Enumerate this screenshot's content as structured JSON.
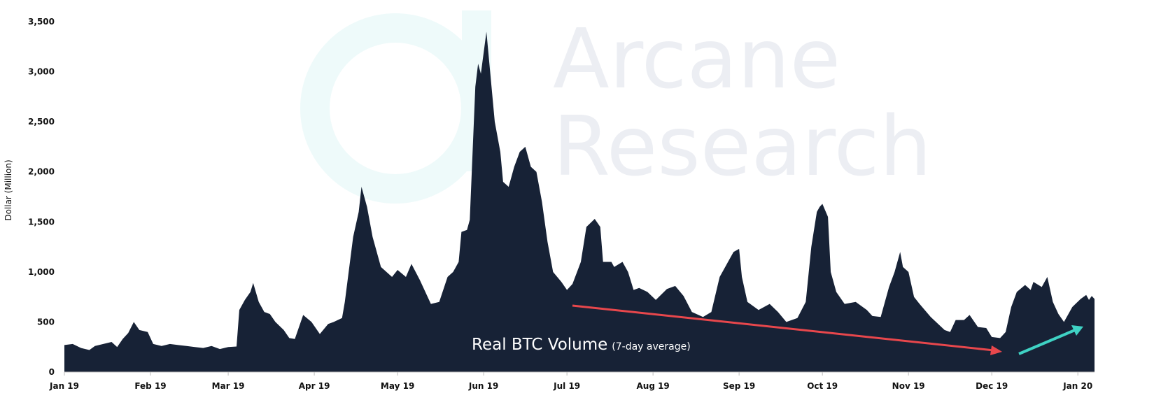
{
  "chart_data": {
    "type": "area",
    "ylabel": "Dollar (Million)",
    "annotation": "Real BTC Volume",
    "annotation_note": "(7-day average)",
    "watermark": [
      "Arcane",
      "Research"
    ],
    "x": [
      0,
      3,
      6,
      9,
      11,
      14,
      17,
      19,
      21,
      23,
      25,
      27,
      30,
      32,
      35,
      38,
      41,
      44,
      47,
      50,
      53,
      56,
      59,
      62,
      63,
      65,
      67,
      68,
      70,
      72,
      74,
      76,
      79,
      81,
      83,
      86,
      89,
      92,
      95,
      97,
      100,
      101,
      104,
      106,
      107,
      109,
      111,
      114,
      118,
      120,
      123,
      125,
      128,
      132,
      135,
      138,
      140,
      142,
      143,
      145,
      146,
      148,
      149,
      150,
      152,
      155,
      157,
      158,
      160,
      162,
      164,
      166,
      168,
      170,
      172,
      174,
      176,
      179,
      181,
      183,
      186,
      188,
      191,
      193,
      194,
      197,
      198,
      201,
      203,
      205,
      207,
      210,
      213,
      217,
      220,
      223,
      226,
      230,
      233,
      236,
      239,
      241,
      243,
      244,
      246,
      250,
      254,
      257,
      260,
      264,
      267,
      269,
      271,
      272,
      273,
      275,
      276,
      278,
      281,
      285,
      289,
      291,
      294,
      297,
      299,
      301,
      302,
      304,
      306,
      308,
      312,
      317,
      319,
      321,
      324,
      326,
      329,
      332,
      334,
      337,
      339,
      341,
      343,
      346,
      348,
      349,
      352,
      354,
      356,
      358,
      360,
      363,
      366,
      368,
      369,
      370,
      371
    ],
    "series": [
      {
        "name": "Real BTC Volume",
        "color": "#172236",
        "values": [
          270,
          280,
          240,
          220,
          260,
          280,
          300,
          250,
          330,
          390,
          500,
          420,
          400,
          280,
          260,
          280,
          270,
          260,
          250,
          240,
          260,
          230,
          250,
          255,
          620,
          720,
          800,
          890,
          700,
          600,
          580,
          500,
          420,
          340,
          330,
          570,
          500,
          380,
          480,
          500,
          540,
          700,
          1350,
          1600,
          1850,
          1650,
          1350,
          1050,
          950,
          1020,
          950,
          1080,
          920,
          680,
          700,
          950,
          1000,
          1100,
          1400,
          1420,
          1520,
          2850,
          3080,
          2980,
          3400,
          2500,
          2200,
          1900,
          1850,
          2050,
          2200,
          2250,
          2050,
          2000,
          1700,
          1300,
          1000,
          900,
          820,
          880,
          1100,
          1450,
          1530,
          1450,
          1100,
          1100,
          1050,
          1100,
          1000,
          820,
          840,
          800,
          720,
          830,
          860,
          760,
          600,
          550,
          600,
          950,
          1100,
          1200,
          1230,
          950,
          700,
          620,
          680,
          600,
          500,
          540,
          700,
          1250,
          1600,
          1650,
          1680,
          1550,
          1000,
          800,
          680,
          700,
          620,
          560,
          550,
          850,
          1000,
          1200,
          1050,
          1000,
          750,
          680,
          550,
          420,
          400,
          520,
          520,
          570,
          450,
          440,
          350,
          340,
          400,
          650,
          800,
          870,
          820,
          900,
          850,
          950,
          700,
          580,
          500,
          650,
          730,
          770,
          720,
          760,
          730
        ]
      }
    ],
    "xlim": [
      0,
      371
    ],
    "xticks": [
      {
        "value": 0,
        "label": "Jan 19"
      },
      {
        "value": 31,
        "label": "Feb 19"
      },
      {
        "value": 59,
        "label": "Mar 19"
      },
      {
        "value": 90,
        "label": "Apr 19"
      },
      {
        "value": 120,
        "label": "May 19"
      },
      {
        "value": 151,
        "label": "Jun 19"
      },
      {
        "value": 181,
        "label": "Jul 19"
      },
      {
        "value": 212,
        "label": "Aug 19"
      },
      {
        "value": 243,
        "label": "Sep 19"
      },
      {
        "value": 273,
        "label": "Oct 19"
      },
      {
        "value": 304,
        "label": "Nov 19"
      },
      {
        "value": 334,
        "label": "Dec 19"
      },
      {
        "value": 365,
        "label": "Jan 20"
      }
    ],
    "ylim": [
      0,
      3500
    ],
    "yticks": [
      0,
      500,
      {
        "value": 1000,
        "label": "1,000"
      },
      {
        "value": 1500,
        "label": "1,500"
      },
      {
        "value": 2000,
        "label": "2,000"
      },
      {
        "value": 2500,
        "label": "2,500"
      },
      {
        "value": 3000,
        "label": "3,000"
      },
      {
        "value": 3500,
        "label": "3,500"
      }
    ]
  }
}
